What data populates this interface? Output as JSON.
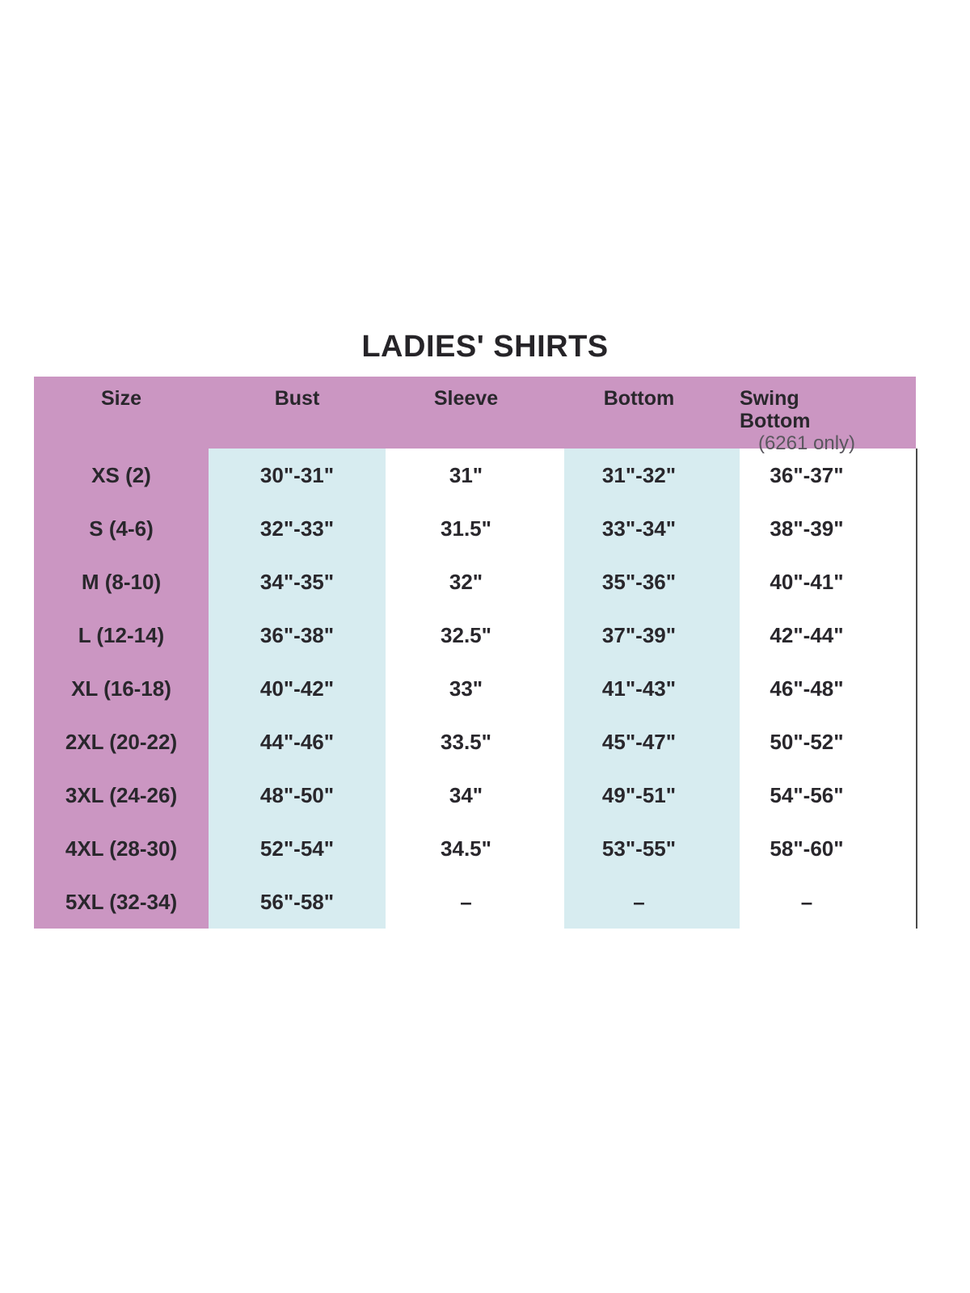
{
  "page": {
    "title": "LADIES' SHIRTS"
  },
  "table": {
    "columns": [
      {
        "label": "Size",
        "sublabel": ""
      },
      {
        "label": "Bust",
        "sublabel": ""
      },
      {
        "label": "Sleeve",
        "sublabel": ""
      },
      {
        "label": "Bottom",
        "sublabel": ""
      },
      {
        "label": "Swing Bottom",
        "sublabel": "(6261 only)"
      }
    ],
    "rows": [
      {
        "size": "XS (2)",
        "bust": "30\"-31\"",
        "sleeve": "31\"",
        "bottom": "31\"-32\"",
        "swing": "36\"-37\""
      },
      {
        "size": "S (4-6)",
        "bust": "32\"-33\"",
        "sleeve": "31.5\"",
        "bottom": "33\"-34\"",
        "swing": "38\"-39\""
      },
      {
        "size": "M (8-10)",
        "bust": "34\"-35\"",
        "sleeve": "32\"",
        "bottom": "35\"-36\"",
        "swing": "40\"-41\""
      },
      {
        "size": "L (12-14)",
        "bust": "36\"-38\"",
        "sleeve": "32.5\"",
        "bottom": "37\"-39\"",
        "swing": "42\"-44\""
      },
      {
        "size": "XL (16-18)",
        "bust": "40\"-42\"",
        "sleeve": "33\"",
        "bottom": "41\"-43\"",
        "swing": "46\"-48\""
      },
      {
        "size": "2XL (20-22)",
        "bust": "44\"-46\"",
        "sleeve": "33.5\"",
        "bottom": "45\"-47\"",
        "swing": "50\"-52\""
      },
      {
        "size": "3XL (24-26)",
        "bust": "48\"-50\"",
        "sleeve": "34\"",
        "bottom": "49\"-51\"",
        "swing": "54\"-56\""
      },
      {
        "size": "4XL (28-30)",
        "bust": "52\"-54\"",
        "sleeve": "34.5\"",
        "bottom": "53\"-55\"",
        "swing": "58\"-60\""
      },
      {
        "size": "5XL (32-34)",
        "bust": "56\"-58\"",
        "sleeve": "–",
        "bottom": "–",
        "swing": "–"
      }
    ]
  },
  "colors": {
    "header_bg": "#cb96c2",
    "size_col_bg": "#cb96c2",
    "tint_col_bg": "#d7ecf0",
    "text": "#29272c",
    "subtext": "#5a575e",
    "border_line": "#4a4a4a",
    "page_bg": "#ffffff"
  }
}
